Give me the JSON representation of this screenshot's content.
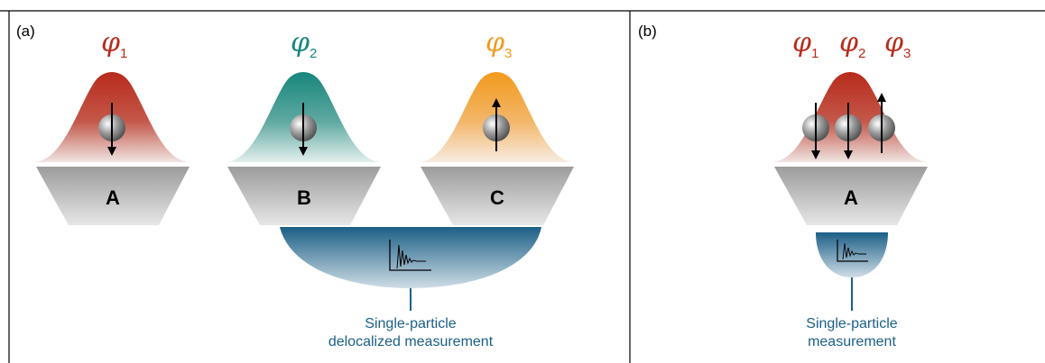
{
  "colors": {
    "phi1": "#b72b1b",
    "phi2": "#17867c",
    "phi3": "#f29a1c",
    "measurement": "#1b5f86",
    "trap": "#b5b5b5"
  },
  "panel_a": {
    "label": "(a)",
    "orbitals": [
      {
        "symbol": "φ",
        "index": "1",
        "spin": "down",
        "trap": "A"
      },
      {
        "symbol": "φ",
        "index": "2",
        "spin": "down",
        "trap": "B"
      },
      {
        "symbol": "φ",
        "index": "3",
        "spin": "up",
        "trap": "C"
      }
    ],
    "caption_line1": "Single-particle",
    "caption_line2": "delocalized measurement"
  },
  "panel_b": {
    "label": "(b)",
    "orbitals": [
      {
        "symbol": "φ",
        "index": "1"
      },
      {
        "symbol": "φ",
        "index": "2"
      },
      {
        "symbol": "φ",
        "index": "3"
      }
    ],
    "spins": [
      "down",
      "down",
      "up"
    ],
    "trap": "A",
    "caption_line1": "Single-particle",
    "caption_line2": "measurement"
  }
}
